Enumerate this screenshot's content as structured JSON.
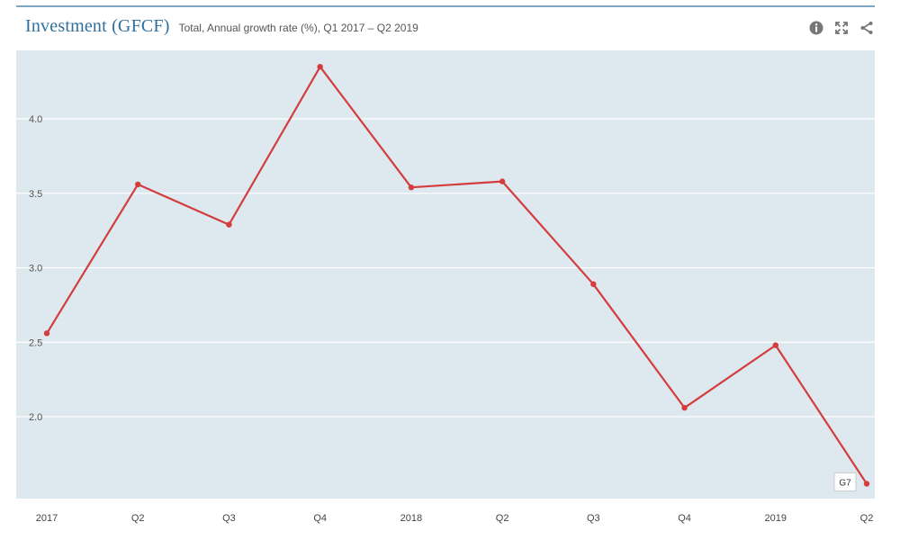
{
  "header": {
    "title": "Investment (GFCF)",
    "subtitle": "Total, Annual growth rate (%), Q1 2017 – Q2 2019"
  },
  "toolbar": {
    "info_icon": "info-icon",
    "expand_icon": "expand-icon",
    "share_icon": "share-icon"
  },
  "colors": {
    "plot_background": "#dde8ef",
    "series": "#d43d3d",
    "title": "#2f6f9f"
  },
  "chart_data": {
    "type": "line",
    "title": "Investment (GFCF)",
    "subtitle": "Total, Annual growth rate (%), Q1 2017 – Q2 2019",
    "categories": [
      "2017",
      "Q2",
      "Q3",
      "Q4",
      "2018",
      "Q2",
      "Q3",
      "Q4",
      "2019",
      "Q2"
    ],
    "series": [
      {
        "name": "G7",
        "values": [
          2.56,
          3.56,
          3.29,
          4.35,
          3.54,
          3.58,
          2.89,
          2.06,
          2.48,
          1.55
        ]
      }
    ],
    "ylim": [
      1.45,
      4.46
    ],
    "yticks": [
      2.0,
      2.5,
      3.0,
      3.5,
      4.0
    ],
    "ytick_labels": [
      "2.0",
      "2.5",
      "3.0",
      "3.5",
      "4.0"
    ],
    "xlabel": "",
    "ylabel": "",
    "grid": true,
    "end_label": "G7"
  }
}
